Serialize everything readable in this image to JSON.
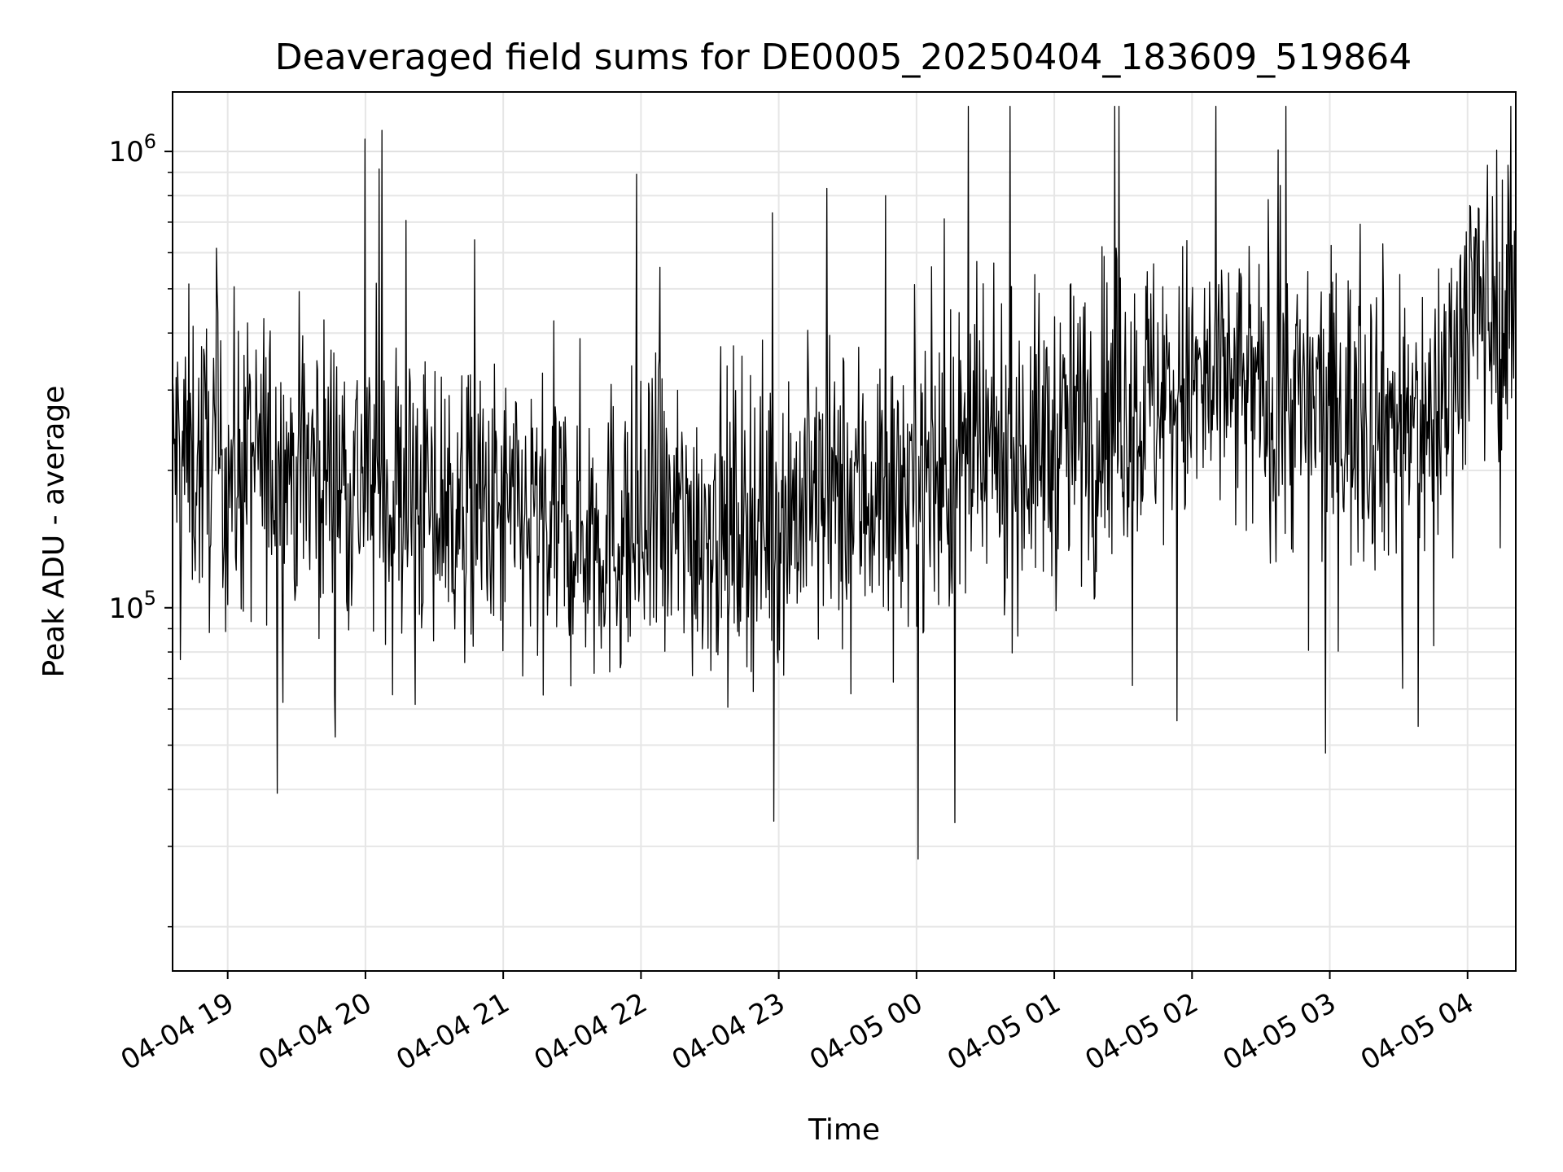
{
  "chart_data": {
    "type": "line",
    "title": "Deaveraged field sums for DE0005_20250404_183609_519864",
    "xlabel": "Time",
    "ylabel": "Peak ADU - average",
    "x_range": [
      "2025-04-04 18:36",
      "2025-04-05 04:21"
    ],
    "ylim": [
      16000,
      1350000
    ],
    "yscale": "log",
    "grid": true,
    "x_ticks": [
      "04-04 19",
      "04-04 20",
      "04-04 21",
      "04-04 22",
      "04-04 23",
      "04-05 00",
      "04-05 01",
      "04-05 02",
      "04-05 03",
      "04-05 04"
    ],
    "y_ticks": [
      {
        "value": 100000,
        "base": "10",
        "exp": "5"
      },
      {
        "value": 1000000,
        "base": "10",
        "exp": "6"
      }
    ],
    "series": [
      {
        "color": "#000000",
        "x": [
          "18:36",
          "19:00",
          "19:30",
          "20:00",
          "20:30",
          "21:00",
          "21:30",
          "22:00",
          "22:30",
          "23:00",
          "23:30",
          "00:00",
          "00:30",
          "01:00",
          "01:30",
          "02:00",
          "02:30",
          "03:00",
          "03:30",
          "03:45",
          "04:00",
          "04:21"
        ],
        "values": [
          220000,
          200000,
          210000,
          190000,
          170000,
          155000,
          150000,
          145000,
          155000,
          165000,
          175000,
          190000,
          205000,
          230000,
          280000,
          300000,
          290000,
          270000,
          260000,
          250000,
          450000,
          480000
        ]
      }
    ]
  }
}
